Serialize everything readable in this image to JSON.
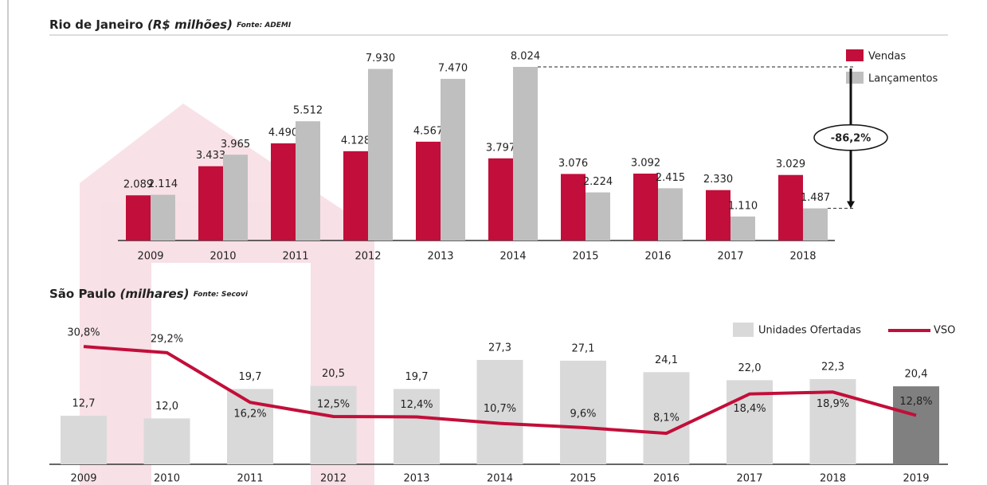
{
  "chart_data": [
    {
      "type": "grouped-bar",
      "title": "Rio de Janeiro",
      "unit": "(R$ milhões)",
      "source": "Fonte: ADEMI",
      "categories": [
        "2009",
        "2010",
        "2011",
        "2012",
        "2013",
        "2014",
        "2015",
        "2016",
        "2017",
        "2018"
      ],
      "series": [
        {
          "name": "Vendas",
          "color": "#c20e3a",
          "values": [
            2089,
            3433,
            4490,
            4128,
            4567,
            3797,
            3076,
            3092,
            2330,
            3029
          ],
          "value_labels": [
            "2.089",
            "3.433",
            "4.490",
            "4.128",
            "4.567",
            "3.797",
            "3.076",
            "3.092",
            "2.330",
            "3.029"
          ]
        },
        {
          "name": "Lançamentos",
          "color": "#bfbfbf",
          "values": [
            2114,
            3965,
            5512,
            7930,
            7470,
            8024,
            2224,
            2415,
            1110,
            1487
          ],
          "value_labels": [
            "2.114",
            "3.965",
            "5.512",
            "7.930",
            "7.470",
            "8.024",
            "2.224",
            "2.415",
            "1.110",
            "1.487"
          ]
        }
      ],
      "annotation": "-86,2%",
      "legend": "top-right"
    },
    {
      "type": "bar-line",
      "title": "São Paulo",
      "unit": "(milhares)",
      "source": "Fonte: Secovi",
      "categories": [
        "2009",
        "2010",
        "2011",
        "2012",
        "2013",
        "2014",
        "2015",
        "2016",
        "2017",
        "2018",
        "2019"
      ],
      "series": [
        {
          "name": "Unidades Ofertadas",
          "type": "bar",
          "color": "#d9d9d9",
          "colors": [
            "#d9d9d9",
            "#d9d9d9",
            "#d9d9d9",
            "#d9d9d9",
            "#d9d9d9",
            "#d9d9d9",
            "#d9d9d9",
            "#d9d9d9",
            "#d9d9d9",
            "#d9d9d9",
            "#808080"
          ],
          "values": [
            12.7,
            12.0,
            19.7,
            20.5,
            19.7,
            27.3,
            27.1,
            24.1,
            22.0,
            22.3,
            20.4
          ],
          "value_labels": [
            "12,7",
            "12,0",
            "19,7",
            "20,5",
            "19,7",
            "27,3",
            "27,1",
            "24,1",
            "22,0",
            "22,3",
            "20,4"
          ]
        },
        {
          "name": "VSO",
          "type": "line",
          "color": "#c20e3a",
          "values": [
            30.8,
            29.2,
            16.2,
            12.5,
            12.4,
            10.7,
            9.6,
            8.1,
            18.4,
            18.9,
            12.8
          ],
          "value_labels": [
            "30,8%",
            "29,2%",
            "16,2%",
            "12,5%",
            "12,4%",
            "10,7%",
            "9,6%",
            "8,1%",
            "18,4%",
            "18,9%",
            "12,8%"
          ]
        }
      ],
      "legend": "top-right"
    }
  ]
}
